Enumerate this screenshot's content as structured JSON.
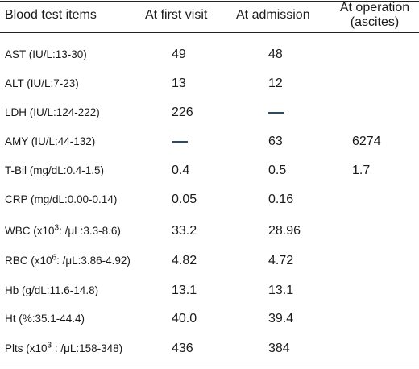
{
  "headers": {
    "items": "Blood test items",
    "first_visit": "At first visit",
    "admission": "At admission",
    "operation_line1": "At operation",
    "operation_line2": "(ascites)"
  },
  "rows": [
    {
      "item": "AST (IU/L:13-30)",
      "first_visit": "49",
      "admission": "48",
      "operation": ""
    },
    {
      "item": "ALT (IU/L:7-23)",
      "first_visit": "13",
      "admission": "12",
      "operation": ""
    },
    {
      "item": "LDH (IU/L:124-222)",
      "first_visit": "226",
      "admission": "—",
      "operation": ""
    },
    {
      "item": "AMY (IU/L:44-132)",
      "first_visit": "—",
      "admission": "63",
      "operation": "6274"
    },
    {
      "item": "T-Bil (mg/dL:0.4-1.5)",
      "first_visit": "0.4",
      "admission": "0.5",
      "operation": "1.7"
    },
    {
      "item": "CRP (mg/dL:0.00-0.14)",
      "first_visit": "0.05",
      "admission": "0.16",
      "operation": ""
    },
    {
      "item_pre": "WBC (x10",
      "item_sup": "3",
      "item_post": ": /μL:3.3-8.6)",
      "first_visit": "33.2",
      "admission": "28.96",
      "operation": ""
    },
    {
      "item_pre": "RBC (x10",
      "item_sup": "6",
      "item_post": ": /μL:3.86-4.92)",
      "first_visit": "4.82",
      "admission": "4.72",
      "operation": ""
    },
    {
      "item": "Hb (g/dL:11.6-14.8)",
      "first_visit": "13.1",
      "admission": "13.1",
      "operation": ""
    },
    {
      "item": "Ht (%:35.1-44.4)",
      "first_visit": "40.0",
      "admission": "39.4",
      "operation": ""
    },
    {
      "item_pre": "Plts (x10",
      "item_sup": "3",
      "item_post": " : /μL:158-348)",
      "first_visit": "436",
      "admission": "384",
      "operation": ""
    }
  ]
}
